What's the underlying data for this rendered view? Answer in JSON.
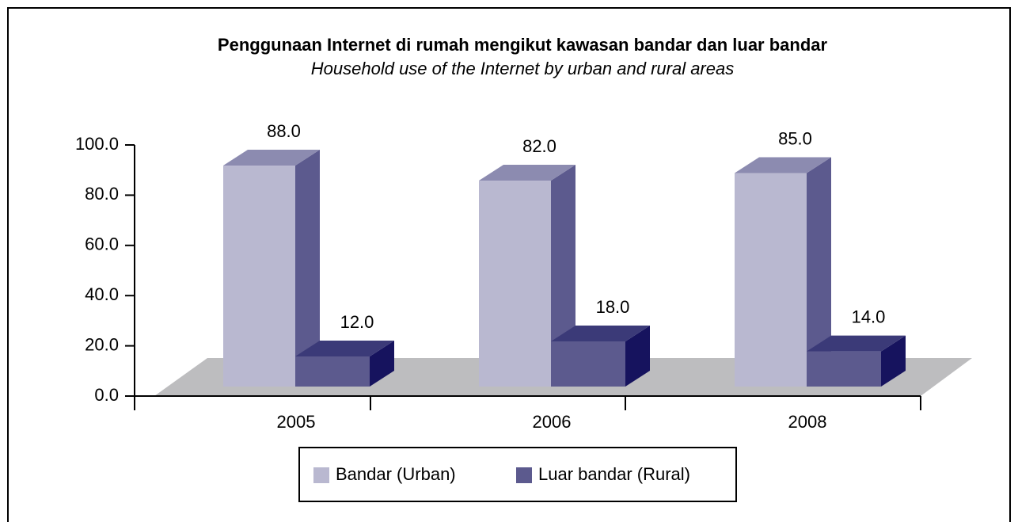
{
  "chart_data": {
    "type": "bar3d",
    "title": "Penggunaan Internet di rumah mengikut kawasan bandar dan luar bandar",
    "subtitle": "Household use of the Internet by urban and rural areas",
    "categories": [
      "2005",
      "2006",
      "2008"
    ],
    "series": [
      {
        "name": "Bandar (Urban)",
        "color": "#b9b8d0",
        "values": [
          88,
          82,
          85
        ],
        "value_labels": [
          "88.0",
          "82.0",
          "85.0"
        ]
      },
      {
        "name": "Luar bandar (Rural)",
        "color": "#5c5a8e",
        "values": [
          12,
          18,
          14
        ],
        "value_labels": [
          "12.0",
          "18.0",
          "14.0"
        ]
      }
    ],
    "ylim": [
      0,
      100
    ],
    "yticks": [
      {
        "value": 0,
        "label": "0.0"
      },
      {
        "value": 20,
        "label": "20.0"
      },
      {
        "value": 40,
        "label": "40.0"
      },
      {
        "value": 60,
        "label": "60.0"
      },
      {
        "value": 80,
        "label": "80.0"
      },
      {
        "value": 100,
        "label": "100.0"
      }
    ]
  }
}
